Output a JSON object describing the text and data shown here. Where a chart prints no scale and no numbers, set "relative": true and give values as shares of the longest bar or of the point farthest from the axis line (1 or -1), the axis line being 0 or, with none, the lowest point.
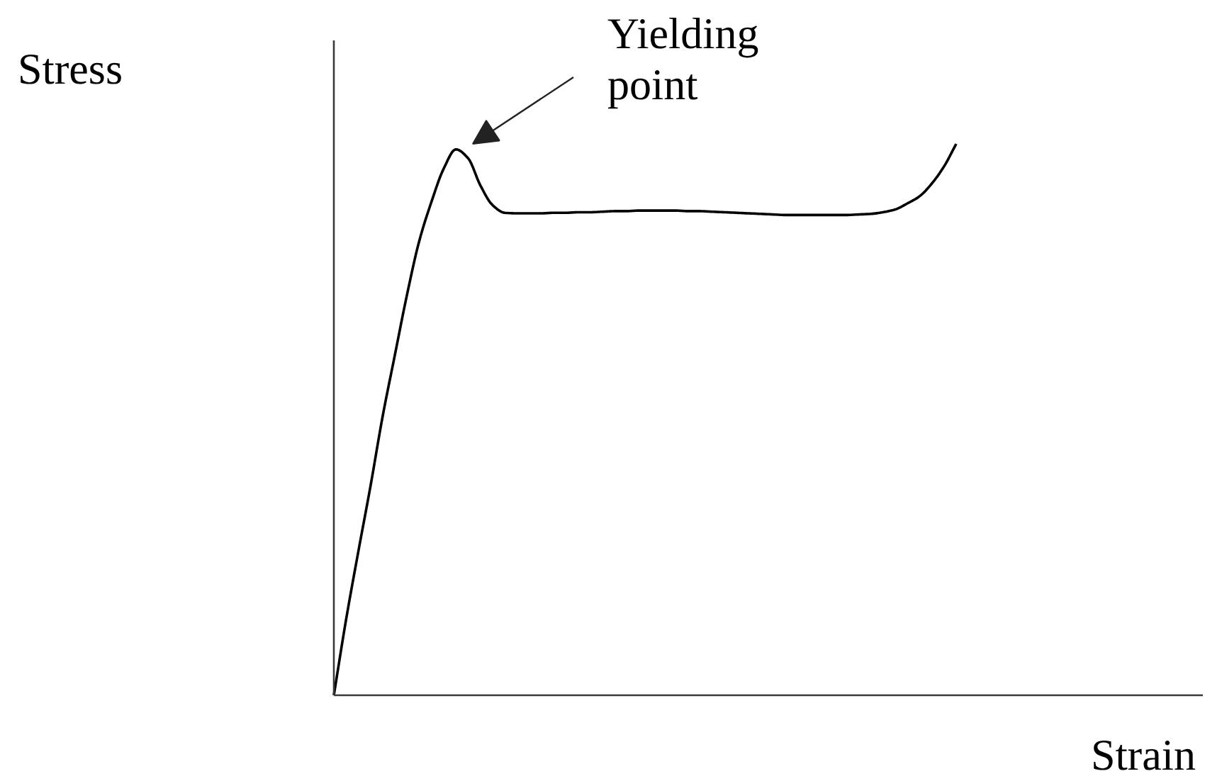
{
  "chart_data": {
    "type": "line",
    "relative": true,
    "xlabel": "Strain",
    "ylabel": "Stress",
    "annotations": [
      "Yielding\npoint"
    ],
    "categories": [
      null,
      null,
      null,
      null,
      null,
      null,
      null,
      null,
      null,
      null,
      null,
      null,
      null,
      null,
      null,
      null,
      null,
      null,
      null,
      null,
      null,
      null,
      null,
      null,
      null,
      null,
      null,
      null,
      null,
      null,
      null,
      null,
      null,
      null,
      null,
      null,
      null,
      null,
      null,
      null,
      null,
      null,
      null,
      null,
      null,
      null,
      null,
      null,
      null,
      null,
      null,
      null
    ],
    "values": [
      0,
      0.137,
      0.26,
      0.379,
      0.506,
      0.617,
      0.727,
      0.824,
      0.895,
      0.955,
      0.99,
      0.974,
      0.925,
      0.889,
      0.875,
      0.874,
      0.874,
      0.874,
      0.875,
      0.875,
      0.876,
      0.876,
      0.877,
      0.878,
      0.878,
      0.879,
      0.879,
      0.879,
      0.879,
      0.878,
      0.878,
      0.877,
      0.876,
      0.875,
      0.874,
      0.873,
      0.872,
      0.871,
      0.871,
      0.871,
      0.871,
      0.871,
      0.871,
      0.872,
      0.873,
      0.876,
      0.881,
      0.892,
      0.905,
      0.928,
      0.959,
      1.0
    ],
    "color": "#000000",
    "tick_labels": false,
    "marker": "none",
    "line_style": "solid"
  }
}
